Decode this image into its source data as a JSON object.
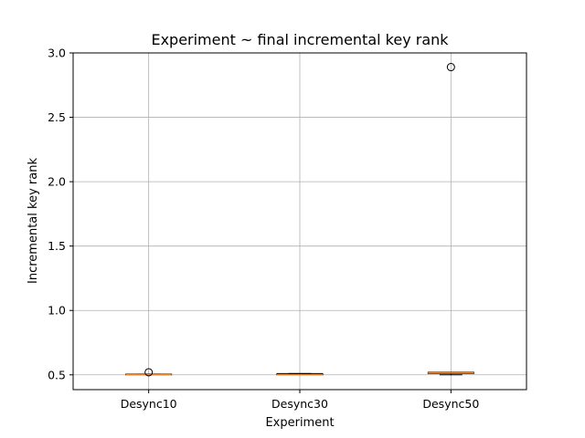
{
  "chart_data": {
    "type": "box",
    "title": "Experiment ~ final incremental key rank",
    "xlabel": "Experiment",
    "ylabel": "Incremental key rank",
    "categories": [
      "Desync10",
      "Desync30",
      "Desync50"
    ],
    "ylim": [
      0.385,
      3.0
    ],
    "yticks": [
      0.5,
      1.0,
      1.5,
      2.0,
      2.5,
      3.0
    ],
    "ytick_labels": [
      "0.5",
      "1.0",
      "1.5",
      "2.0",
      "2.5",
      "3.0"
    ],
    "grid": true,
    "boxes": [
      {
        "name": "Desync10",
        "whisker_low": 0.5,
        "q1": 0.5,
        "median": 0.5,
        "q3": 0.505,
        "whisker_high": 0.505,
        "outliers": [
          0.52
        ]
      },
      {
        "name": "Desync30",
        "whisker_low": 0.5,
        "q1": 0.5,
        "median": 0.5,
        "q3": 0.51,
        "whisker_high": 0.51,
        "outliers": []
      },
      {
        "name": "Desync50",
        "whisker_low": 0.5,
        "q1": 0.51,
        "median": 0.515,
        "q3": 0.52,
        "whisker_high": 0.52,
        "outliers": [
          2.89
        ]
      }
    ],
    "colors": {
      "box": "#000000",
      "median": "#ff7f0e",
      "grid": "#b0b0b0"
    }
  }
}
